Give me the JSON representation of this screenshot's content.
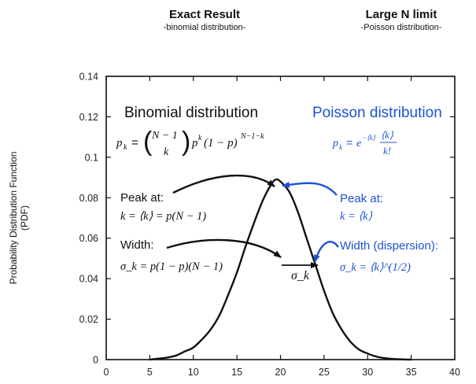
{
  "headers": {
    "exact": {
      "title": "Exact Result",
      "subtitle": "-binomial distribution-"
    },
    "large_n": {
      "title": "Large N limit",
      "subtitle": "-Poisson distribution-"
    }
  },
  "ylabel_lines": [
    "Probability Distribution Function",
    "(PDF)"
  ],
  "annotations": {
    "binomial_title": "Binomial distribution",
    "binomial_formula": "p_k = (N−1 choose k) p^k (1 − p)^(N−1−k)",
    "poisson_title": "Poisson distribution",
    "poisson_formula": "p_k = e^(−⟨k⟩) ⟨k⟩^k / k!",
    "peak_label_left": "Peak at:",
    "peak_formula_left": "k = ⟨k⟩ = p(N − 1)",
    "width_label_left": "Width:",
    "width_formula_left": "σ_k = p(1 − p)(N − 1)",
    "peak_label_right": "Peak at:",
    "peak_formula_right": "k = ⟨k⟩",
    "width_label_right": "Width (dispersion):",
    "width_formula_right": "σ_k = ⟨k⟩^(1/2)",
    "sigma_marker": "σ_k"
  },
  "colors": {
    "blue": "#1d52d6",
    "black": "#111111"
  },
  "chart_data": {
    "type": "line",
    "xlim": [
      0,
      40
    ],
    "ylim": [
      0,
      0.14
    ],
    "xticks": [
      0,
      5,
      10,
      15,
      20,
      25,
      30,
      35,
      40
    ],
    "yticks": [
      0,
      0.02,
      0.04,
      0.06,
      0.08,
      0.1,
      0.12,
      0.14
    ],
    "ytick_labels": [
      "0",
      "0.02",
      "0.04",
      "0.06",
      "0.08",
      "0.1",
      "0.12",
      "0.14"
    ],
    "grid": false,
    "series": [
      {
        "x": [
          5,
          6,
          7,
          8,
          9,
          10,
          11,
          12,
          13,
          14,
          15,
          16,
          17,
          18,
          19,
          19.5,
          20,
          21,
          22,
          23,
          24,
          25,
          26,
          27,
          28,
          29,
          30,
          31,
          32,
          33,
          34,
          35
        ],
        "y": [
          0.0,
          0.0005,
          0.001,
          0.002,
          0.004,
          0.006,
          0.01,
          0.015,
          0.022,
          0.032,
          0.043,
          0.056,
          0.068,
          0.079,
          0.087,
          0.089,
          0.088,
          0.083,
          0.073,
          0.06,
          0.047,
          0.034,
          0.023,
          0.015,
          0.009,
          0.005,
          0.003,
          0.0015,
          0.0007,
          0.0003,
          0.0001,
          0.0
        ]
      }
    ]
  }
}
